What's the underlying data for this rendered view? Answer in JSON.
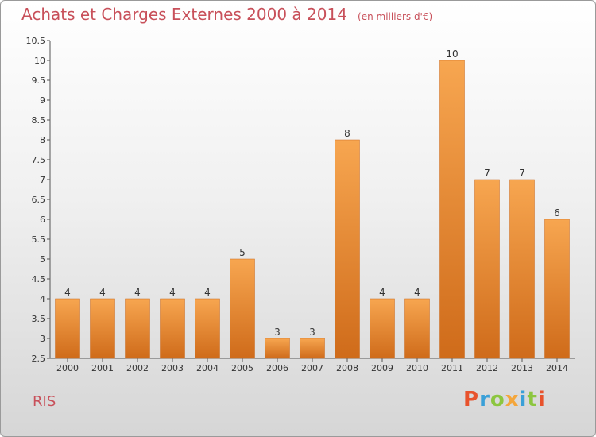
{
  "header": {
    "title": "Achats et Charges Externes 2000 à 2014",
    "unit": "(en milliers d'€)"
  },
  "footer": {
    "commune": "RIS",
    "brand": "Proxiti",
    "brand_colors": [
      "#e8522c",
      "#3aa0d8",
      "#8cc63f",
      "#f4a63b",
      "#3aa0d8",
      "#8cc63f",
      "#e8522c"
    ]
  },
  "colors": {
    "title": "#c8505a",
    "bar_light": "#f7a650",
    "bar_dark": "#cf6b1a"
  },
  "chart_data": {
    "type": "bar",
    "title": "Achats et Charges Externes 2000 à 2014",
    "xlabel": "",
    "ylabel": "",
    "categories": [
      "2000",
      "2001",
      "2002",
      "2003",
      "2004",
      "2005",
      "2006",
      "2007",
      "2008",
      "2009",
      "2010",
      "2011",
      "2012",
      "2013",
      "2014"
    ],
    "values": [
      4,
      4,
      4,
      4,
      4,
      5,
      3,
      3,
      8,
      4,
      4,
      10,
      7,
      7,
      6
    ],
    "ylim": [
      2.5,
      10.5
    ],
    "yticks": [
      "2.5",
      "3",
      "3.5",
      "4",
      "4.5",
      "5",
      "5.5",
      "6",
      "6.5",
      "7",
      "7.5",
      "8",
      "8.5",
      "9",
      "9.5",
      "10",
      "10.5"
    ],
    "grid": false,
    "legend": "none"
  }
}
